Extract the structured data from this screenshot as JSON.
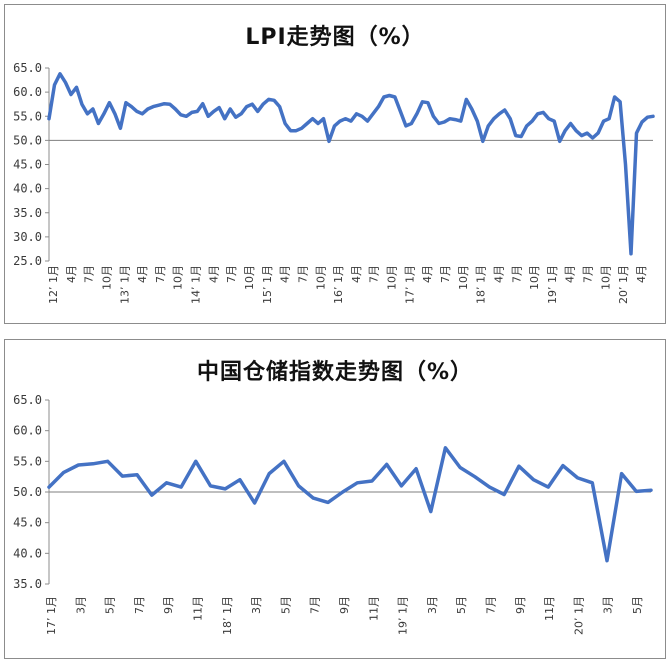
{
  "chart_data": [
    {
      "type": "line",
      "title": "LPI走势图（%）",
      "ylim": [
        25.0,
        65.0
      ],
      "y_ticks": [
        "65.0",
        "60.0",
        "55.0",
        "50.0",
        "45.0",
        "40.0",
        "35.0",
        "30.0",
        "25.0"
      ],
      "baseline": 50.0,
      "x_tick_labels": [
        "12’ 1月",
        "4月",
        "7月",
        "10月",
        "13’ 1月",
        "4月",
        "7月",
        "10月",
        "14’ 1月",
        "4月",
        "7月",
        "10月",
        "15’ 1月",
        "4月",
        "7月",
        "10月",
        "16’ 1月",
        "4月",
        "7月",
        "10月",
        "17’ 1月",
        "4月",
        "7月",
        "10月",
        "18’ 1月",
        "4月",
        "7月",
        "10月",
        "19’ 1月",
        "4月",
        "7月",
        "10月",
        "20’ 1月",
        "4月"
      ],
      "x_range": [
        1,
        100
      ],
      "series": [
        {
          "color": "#4472c4",
          "values": [
            54.5,
            61.5,
            63.8,
            62.0,
            59.5,
            61.0,
            57.5,
            55.5,
            56.5,
            53.5,
            55.5,
            57.8,
            55.5,
            52.5,
            57.8,
            57.0,
            56.0,
            55.5,
            56.5,
            57.0,
            57.3,
            57.6,
            57.5,
            56.5,
            55.3,
            55.0,
            55.8,
            56.0,
            57.6,
            55.0,
            56.0,
            56.8,
            54.5,
            56.5,
            54.8,
            55.5,
            57.0,
            57.5,
            56.0,
            57.5,
            58.5,
            58.3,
            57.0,
            53.5,
            52.0,
            52.0,
            52.5,
            53.5,
            54.5,
            53.5,
            54.5,
            49.8,
            53.0,
            54.0,
            54.5,
            54.0,
            55.5,
            55.0,
            54.0,
            55.5,
            57.0,
            59.0,
            59.3,
            59.0,
            56.0,
            53.0,
            53.5,
            55.5,
            58.0,
            57.8,
            55.0,
            53.5,
            53.8,
            54.5,
            54.3,
            54.0,
            58.5,
            56.5,
            54.0,
            49.8,
            53.0,
            54.5,
            55.5,
            56.3,
            54.5,
            51.0,
            50.8,
            53.0,
            54.0,
            55.5,
            55.8,
            54.5,
            54.0,
            49.8,
            52.0,
            53.5,
            52.0,
            51.0,
            51.5,
            50.5,
            51.5,
            54.0,
            54.5,
            59.0,
            58.0,
            45.0,
            26.5,
            51.5,
            53.8,
            54.8,
            55.0
          ]
        }
      ]
    },
    {
      "type": "line",
      "title": "中国仓储指数走势图（%）",
      "ylim": [
        35.0,
        65.0
      ],
      "y_ticks": [
        "65.0",
        "60.0",
        "55.0",
        "50.0",
        "45.0",
        "40.0",
        "35.0"
      ],
      "baseline": 50.0,
      "x_tick_labels": [
        "17’ 1月",
        "3月",
        "5月",
        "7月",
        "9月",
        "11月",
        "18’ 1月",
        "3月",
        "5月",
        "7月",
        "9月",
        "11月",
        "19’ 1月",
        "3月",
        "5月",
        "7月",
        "9月",
        "11月",
        "20’ 1月",
        "3月",
        "5月"
      ],
      "x_range": [
        1,
        41
      ],
      "series": [
        {
          "color": "#4472c4",
          "values": [
            50.8,
            53.2,
            54.4,
            54.6,
            55.0,
            52.6,
            52.8,
            49.5,
            51.5,
            50.8,
            55.0,
            51.0,
            50.5,
            52.0,
            48.2,
            53.0,
            55.0,
            51.0,
            49.0,
            48.3,
            50.0,
            51.5,
            51.8,
            54.5,
            51.0,
            53.8,
            46.8,
            57.2,
            54.0,
            52.5,
            50.8,
            49.6,
            54.2,
            52.0,
            50.8,
            54.3,
            52.3,
            51.5,
            38.8,
            53.0,
            50.1,
            50.3
          ]
        }
      ]
    }
  ]
}
